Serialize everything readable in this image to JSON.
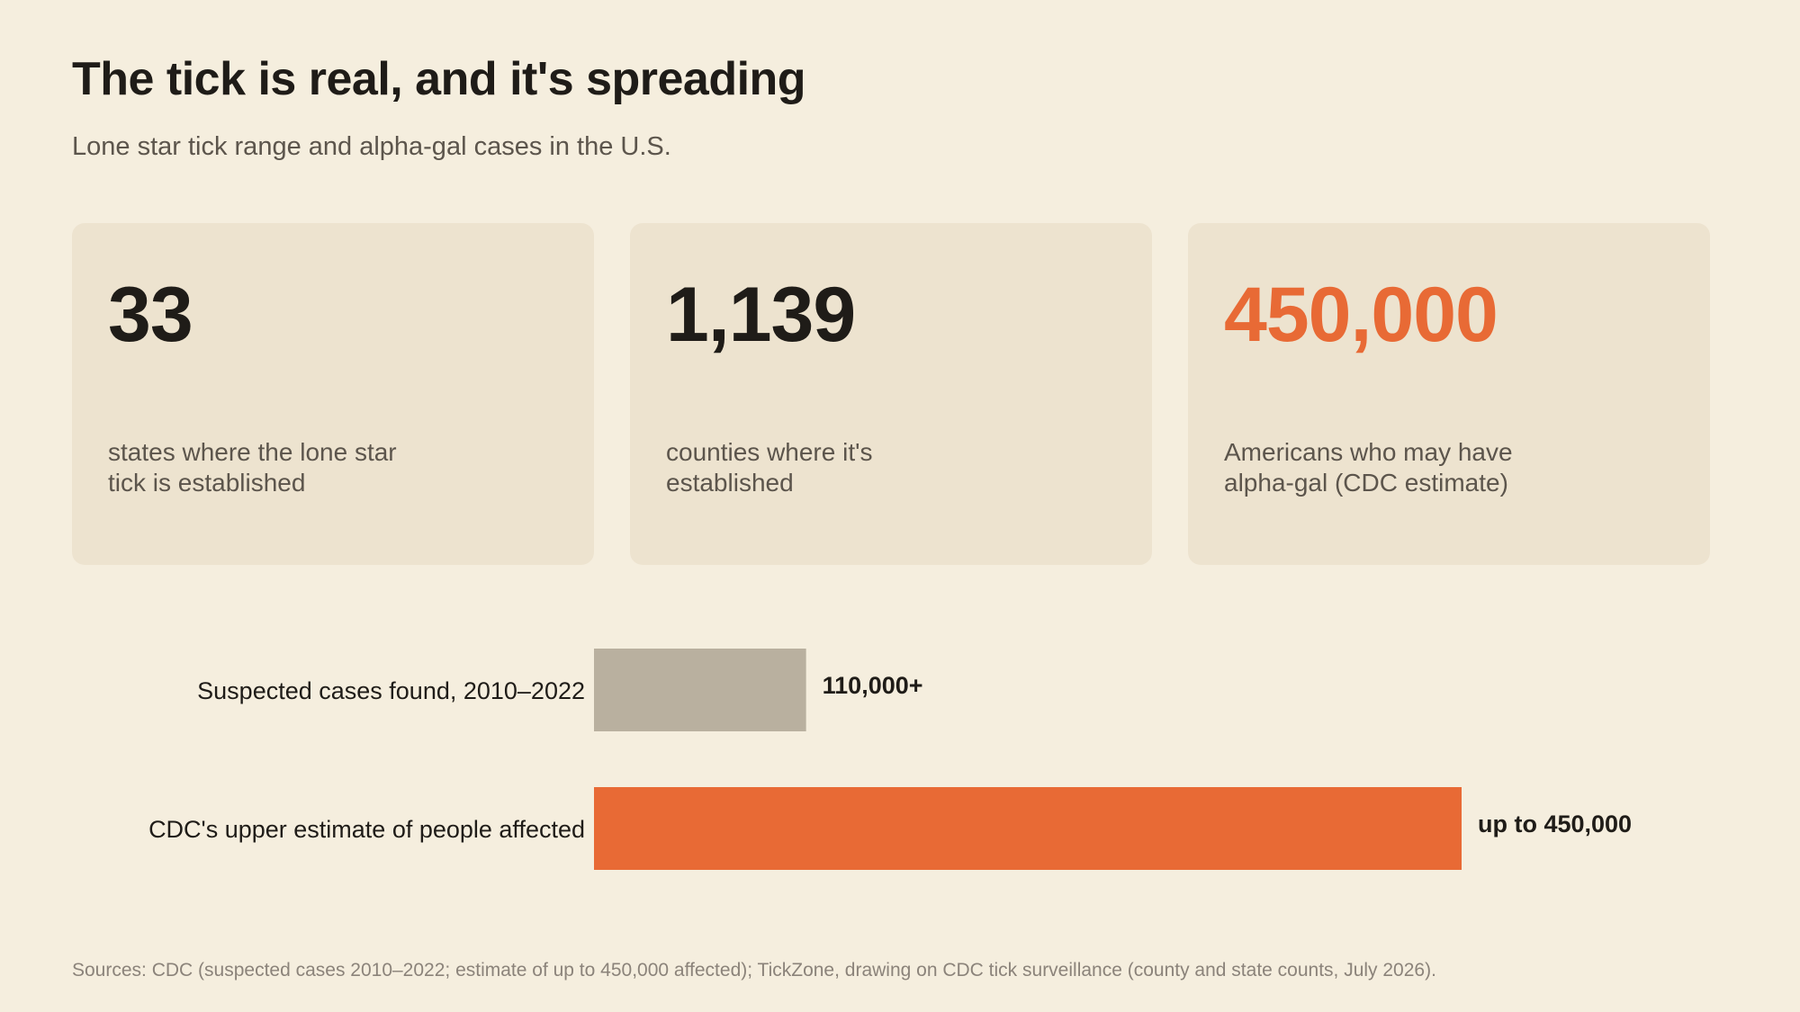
{
  "header": {
    "title": "The tick is real, and it's spreading",
    "subtitle": "Lone star tick range and alpha-gal cases in the U.S."
  },
  "cards": [
    {
      "value": "33",
      "label": "states where the lone star tick is established",
      "accent": false
    },
    {
      "value": "1,139",
      "label": "counties where it's established",
      "accent": false
    },
    {
      "value": "450,000",
      "label": "Americans who may have alpha-gal (CDC estimate)",
      "accent": true
    }
  ],
  "chart_data": {
    "type": "bar",
    "orientation": "horizontal",
    "categories": [
      "Suspected cases found, 2010–2022",
      "CDC's upper estimate of people affected"
    ],
    "values": [
      110000,
      450000
    ],
    "value_labels": [
      "110,000+",
      "up to 450,000"
    ],
    "colors": [
      "#b9b09f",
      "#e86a35"
    ],
    "xlim": [
      0,
      450000
    ],
    "grid": false,
    "legend": "none"
  },
  "footer": {
    "sources": "Sources: CDC (suspected cases 2010–2022; estimate of up to 450,000 affected); TickZone, drawing on CDC tick surveillance (county and state counts, July 2026)."
  }
}
